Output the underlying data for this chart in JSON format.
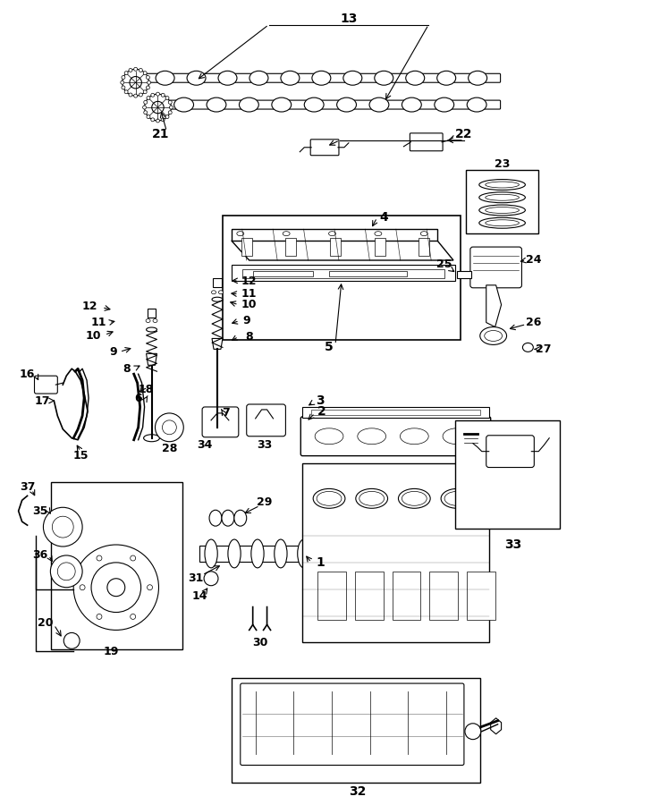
{
  "bg_color": "#ffffff",
  "line_color": "#000000",
  "fig_width": 7.47,
  "fig_height": 9.0,
  "dpi": 100
}
